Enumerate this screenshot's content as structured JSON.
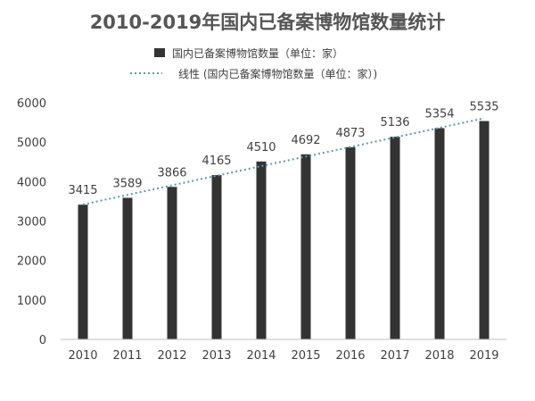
{
  "chart_data": {
    "type": "bar",
    "title": "2010-2019年国内已备案博物馆数量统计",
    "categories": [
      "2010",
      "2011",
      "2012",
      "2013",
      "2014",
      "2015",
      "2016",
      "2017",
      "2018",
      "2019"
    ],
    "series": [
      {
        "name": "国内已备案博物馆数量（单位：家）",
        "values": [
          3415,
          3589,
          3866,
          4165,
          4510,
          4692,
          4873,
          5136,
          5354,
          5535
        ],
        "color": "#333333"
      }
    ],
    "trendline": {
      "name": "线性 (国内已备案博物馆数量（单位：家）)",
      "type": "linear",
      "color": "#5b9bb0",
      "style": "dotted"
    },
    "ylim": [
      0,
      6000
    ],
    "yticks": [
      0,
      1000,
      2000,
      3000,
      4000,
      5000,
      6000
    ],
    "grid": false,
    "legend_position": "top",
    "data_labels": true
  }
}
